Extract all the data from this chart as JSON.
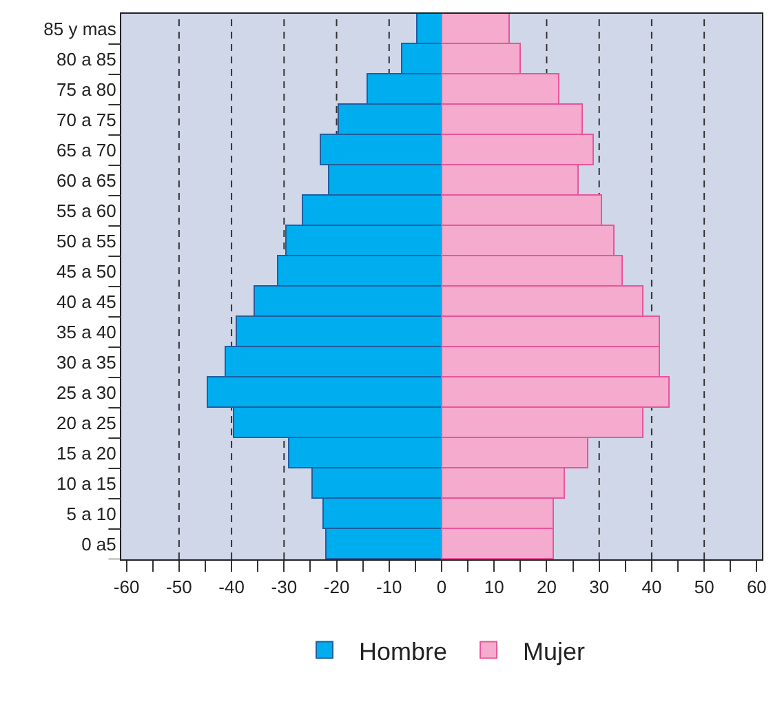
{
  "chart_data": {
    "type": "bar",
    "orientation": "horizontal",
    "stacked": true,
    "categories": [
      "85 y mas",
      "80 a 85",
      "75 a 80",
      "70 a 75",
      "65 a 70",
      "60 a 65",
      "55 a 60",
      "50 a 55",
      "45 a 50",
      "40 a 45",
      "35 a 40",
      "30 a 35",
      "25 a 30",
      "20 a 25",
      "15 a 20",
      "10 a 15",
      "5 a 10",
      "0 a5"
    ],
    "series": [
      {
        "name": "Hombre",
        "color": "#00adef",
        "values": [
          -4.5,
          -7.5,
          -14,
          -19.5,
          -23,
          -21.5,
          -26.5,
          -29.5,
          -31,
          -35.5,
          -39,
          -41,
          -44.5,
          -39.5,
          -29,
          -24.5,
          -22.5,
          -22
        ]
      },
      {
        "name": "Mujer",
        "color": "#f4abcd",
        "values": [
          13,
          15,
          22.5,
          27,
          29,
          26,
          30.5,
          33,
          34.5,
          38.5,
          41.5,
          41.5,
          43.5,
          38.5,
          28,
          23.5,
          21.5,
          21.5
        ]
      }
    ],
    "xlim": [
      -61,
      61
    ],
    "xticks": [
      -60,
      {
        "value": -55,
        "label": null
      },
      -50,
      {
        "value": -45,
        "label": null
      },
      -40,
      {
        "value": -35,
        "label": null
      },
      -30,
      {
        "value": -25,
        "label": null
      },
      -20,
      {
        "value": -15,
        "label": null
      },
      -10,
      {
        "value": -5,
        "label": null
      },
      0,
      {
        "value": 5,
        "label": null
      },
      10,
      {
        "value": 15,
        "label": null
      },
      20,
      {
        "value": 25,
        "label": null
      },
      30,
      {
        "value": 35,
        "label": null
      },
      40,
      {
        "value": 45,
        "label": null
      },
      50,
      {
        "value": 55,
        "label": null
      },
      60
    ],
    "grid": "x",
    "legend": "bottom"
  }
}
